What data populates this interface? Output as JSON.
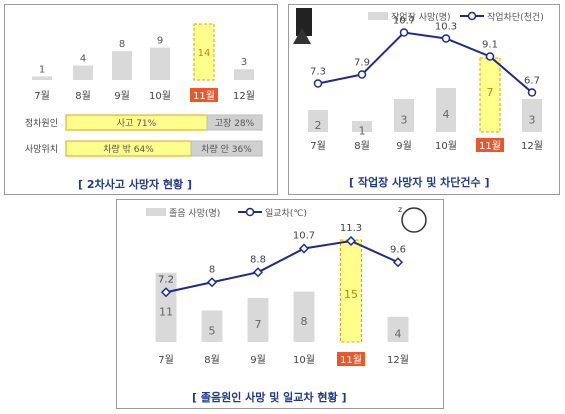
{
  "colors": {
    "bar": "#d9d9d9",
    "highlight_fill": "#ffff8c",
    "highlight_border": "#e8a000",
    "line": "#1f2a8c",
    "month_hl_bg": "#e8582a",
    "caption": "#1f3a8a"
  },
  "panel1": {
    "caption": "[ 2차사고 사망자 현황 ]",
    "chart_data": {
      "type": "bar",
      "categories": [
        "7월",
        "8월",
        "9월",
        "10월",
        "11월",
        "12월"
      ],
      "values": [
        1,
        4,
        8,
        9,
        14,
        3
      ],
      "highlight_index": 4
    },
    "rows": [
      {
        "label": "정차원인",
        "seg_a": "사고 71%",
        "seg_b": "고장 28%",
        "a_share": 71,
        "b_share": 28
      },
      {
        "label": "사망위치",
        "seg_a": "차량 밖 64%",
        "seg_b": "차량 안 36%",
        "a_share": 64,
        "b_share": 36
      }
    ]
  },
  "panel2": {
    "caption": "[ 작업장 사망자 및 차단건수 ]",
    "legend_bar": "작업장 사망(명)",
    "legend_line": "작업차단(천건)",
    "icon": "road-work-icon",
    "chart_data": {
      "type": "bar+line",
      "categories": [
        "7월",
        "8월",
        "9월",
        "10월",
        "11월",
        "12월"
      ],
      "bar_values": [
        2,
        1,
        3,
        4,
        7,
        3
      ],
      "line_values": [
        7.3,
        7.9,
        10.7,
        10.3,
        9.1,
        6.7
      ],
      "highlight_index": 4
    }
  },
  "panel3": {
    "caption": "[ 졸음원인 사망 및 일교차 현황 ]",
    "legend_bar": "졸음 사망(명)",
    "legend_line": "일교차(℃)",
    "icon": "drowsy-driver-icon",
    "chart_data": {
      "type": "bar+line",
      "categories": [
        "7월",
        "8월",
        "9월",
        "10월",
        "11월",
        "12월"
      ],
      "bar_values": [
        11,
        5,
        7,
        8,
        15,
        4
      ],
      "line_values": [
        7.2,
        8.0,
        8.8,
        10.7,
        11.3,
        9.6
      ],
      "highlight_index": 4
    }
  }
}
